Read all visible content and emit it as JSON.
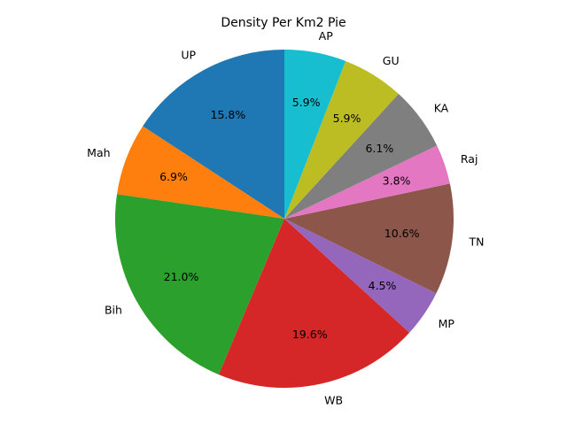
{
  "chart_data": {
    "type": "pie",
    "title": "Density Per Km2 Pie",
    "labels": [
      "UP",
      "Mah",
      "Bih",
      "WB",
      "MP",
      "TN",
      "Raj",
      "KA",
      "GU",
      "AP"
    ],
    "values": [
      15.8,
      6.9,
      21.0,
      19.6,
      4.5,
      10.6,
      3.8,
      6.1,
      5.9,
      5.9
    ],
    "percent_labels": [
      "15.8%",
      "6.9%",
      "21.0%",
      "19.6%",
      "4.5%",
      "10.6%",
      "3.8%",
      "6.1%",
      "5.9%",
      "5.9%"
    ],
    "colors": [
      "#1f77b4",
      "#ff7f0e",
      "#2ca02c",
      "#d62728",
      "#9467bd",
      "#8c564b",
      "#e377c2",
      "#7f7f7f",
      "#bcbd22",
      "#17becf"
    ],
    "start_angle_deg": 90,
    "direction": "counterclockwise",
    "legend": "none"
  }
}
